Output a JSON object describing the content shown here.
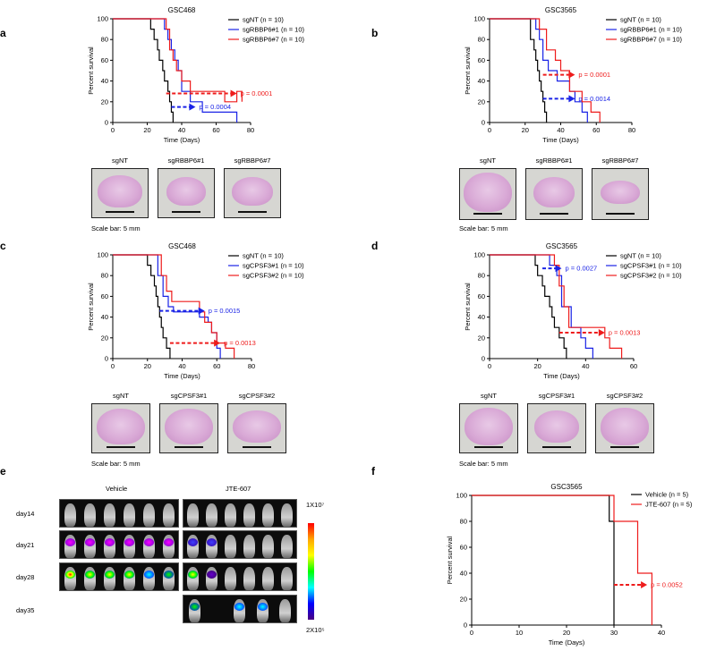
{
  "colors": {
    "black": "#000000",
    "blue": "#1a23e6",
    "red": "#ee1c1c"
  },
  "panels": {
    "a": {
      "label": "a",
      "scale_text": "Scale bar: 5 mm",
      "brains": [
        "sgNT",
        "sgRBBP6#1",
        "sgRBBP6#7"
      ]
    },
    "b": {
      "label": "b",
      "scale_text": "Scale bar: 5 mm",
      "brains": [
        "sgNT",
        "sgRBBP6#1",
        "sgRBBP6#7"
      ]
    },
    "c": {
      "label": "c",
      "scale_text": "Scale bar: 5 mm",
      "brains": [
        "sgNT",
        "sgCPSF3#1",
        "sgCPSF3#2"
      ]
    },
    "d": {
      "label": "d",
      "scale_text": "Scale bar: 5 mm",
      "brains": [
        "sgNT",
        "sgCPSF3#1",
        "sgCPSF3#2"
      ]
    },
    "e": {
      "label": "e",
      "groups": [
        "Vehicle",
        "JTE-607"
      ],
      "days": [
        "day14",
        "day21",
        "day28",
        "day35"
      ],
      "colorbar_max": "1X10⁷",
      "colorbar_min": "2X10⁵"
    },
    "f": {
      "label": "f"
    }
  },
  "chart_data": [
    {
      "id": "a",
      "type": "line",
      "title": "GSC468",
      "xlabel": "Time (Days)",
      "ylabel": "Percent survival",
      "xlim": [
        0,
        80
      ],
      "ylim": [
        0,
        100
      ],
      "xticks": [
        0,
        20,
        40,
        60,
        80
      ],
      "yticks": [
        0,
        20,
        40,
        60,
        80,
        100
      ],
      "series": [
        {
          "name": "sgNT (n = 10)",
          "color": "#000000",
          "x": [
            0,
            22,
            24,
            26,
            27,
            29,
            30,
            32,
            33,
            34,
            35
          ],
          "y": [
            100,
            90,
            80,
            70,
            60,
            50,
            40,
            30,
            20,
            10,
            0
          ]
        },
        {
          "name": "sgRBBP6#1 (n = 10)",
          "color": "#1a23e6",
          "x": [
            0,
            30,
            32,
            34,
            36,
            38,
            40,
            45,
            52,
            72
          ],
          "y": [
            100,
            90,
            80,
            70,
            60,
            50,
            30,
            20,
            10,
            0
          ]
        },
        {
          "name": "sgRBBP6#7 (n = 10)",
          "color": "#ee1c1c",
          "x": [
            0,
            31,
            33,
            35,
            37,
            40,
            45,
            65,
            72,
            75
          ],
          "y": [
            100,
            90,
            70,
            60,
            50,
            40,
            30,
            20,
            30,
            20
          ]
        }
      ],
      "annotations": [
        {
          "text": "p = 0.0001",
          "color": "#ee1c1c",
          "arrow_from": 31,
          "arrow_to": 72,
          "y": 28
        },
        {
          "text": "p = 0.0004",
          "color": "#1a23e6",
          "arrow_from": 34,
          "arrow_to": 48,
          "y": 15
        }
      ]
    },
    {
      "id": "b",
      "type": "line",
      "title": "GSC3565",
      "xlabel": "Time (Days)",
      "ylabel": "Percent survival",
      "xlim": [
        0,
        80
      ],
      "ylim": [
        0,
        100
      ],
      "xticks": [
        0,
        20,
        40,
        60,
        80
      ],
      "yticks": [
        0,
        20,
        40,
        60,
        80,
        100
      ],
      "series": [
        {
          "name": "sgNT (n = 10)",
          "color": "#000000",
          "x": [
            0,
            23,
            25,
            26,
            27,
            28,
            29,
            30,
            31,
            32
          ],
          "y": [
            100,
            80,
            70,
            60,
            50,
            40,
            30,
            20,
            10,
            0
          ]
        },
        {
          "name": "sgRBBP6#1 (n = 10)",
          "color": "#1a23e6",
          "x": [
            0,
            26,
            28,
            30,
            33,
            38,
            45,
            48,
            52,
            55
          ],
          "y": [
            100,
            90,
            80,
            60,
            50,
            40,
            30,
            20,
            10,
            0
          ]
        },
        {
          "name": "sgRBBP6#7 (n = 10)",
          "color": "#ee1c1c",
          "x": [
            0,
            28,
            32,
            37,
            40,
            45,
            52,
            57,
            62
          ],
          "y": [
            100,
            90,
            70,
            60,
            50,
            30,
            20,
            10,
            0
          ]
        }
      ],
      "annotations": [
        {
          "text": "p = 0.0001",
          "color": "#ee1c1c",
          "arrow_from": 30,
          "arrow_to": 48,
          "y": 46
        },
        {
          "text": "p = 0.0014",
          "color": "#1a23e6",
          "arrow_from": 30,
          "arrow_to": 48,
          "y": 23
        }
      ]
    },
    {
      "id": "c",
      "type": "line",
      "title": "GSC468",
      "xlabel": "Time (Days)",
      "ylabel": "Percent survival",
      "xlim": [
        0,
        80
      ],
      "ylim": [
        0,
        100
      ],
      "xticks": [
        0,
        20,
        40,
        60,
        80
      ],
      "yticks": [
        0,
        20,
        40,
        60,
        80,
        100
      ],
      "series": [
        {
          "name": "sgNT (n = 10)",
          "color": "#000000",
          "x": [
            0,
            20,
            22,
            24,
            25,
            26,
            27,
            28,
            29,
            31,
            33
          ],
          "y": [
            100,
            90,
            80,
            70,
            60,
            50,
            40,
            30,
            20,
            10,
            0
          ]
        },
        {
          "name": "sgCPSF3#1 (n = 10)",
          "color": "#1a23e6",
          "x": [
            0,
            26,
            29,
            32,
            35,
            45,
            50,
            55,
            57,
            60,
            62
          ],
          "y": [
            100,
            80,
            60,
            50,
            45,
            45,
            40,
            35,
            25,
            10,
            0
          ]
        },
        {
          "name": "sgCPSF3#2 (n = 10)",
          "color": "#ee1c1c",
          "x": [
            0,
            28,
            31,
            34,
            38,
            50,
            53,
            57,
            60,
            65,
            70
          ],
          "y": [
            100,
            80,
            65,
            55,
            55,
            45,
            35,
            25,
            15,
            10,
            0
          ]
        }
      ],
      "annotations": [
        {
          "text": "p = 0.0015",
          "color": "#1a23e6",
          "arrow_from": 27,
          "arrow_to": 53,
          "y": 46
        },
        {
          "text": "p = 0.0013",
          "color": "#ee1c1c",
          "arrow_from": 33,
          "arrow_to": 62,
          "y": 15
        }
      ]
    },
    {
      "id": "d",
      "type": "line",
      "title": "GSC3565",
      "xlabel": "Time (Days)",
      "ylabel": "Percent survival",
      "xlim": [
        0,
        60
      ],
      "ylim": [
        0,
        100
      ],
      "xticks": [
        0,
        20,
        40,
        60
      ],
      "yticks": [
        0,
        20,
        40,
        60,
        80,
        100
      ],
      "series": [
        {
          "name": "sgNT (n = 10)",
          "color": "#000000",
          "x": [
            0,
            19,
            20,
            22,
            23,
            25,
            26,
            27,
            29,
            31,
            32
          ],
          "y": [
            100,
            90,
            80,
            70,
            60,
            50,
            40,
            30,
            20,
            10,
            0
          ]
        },
        {
          "name": "sgCPSF3#1 (n = 10)",
          "color": "#1a23e6",
          "x": [
            0,
            25,
            28,
            30,
            34,
            38,
            40,
            43
          ],
          "y": [
            100,
            90,
            80,
            50,
            30,
            20,
            10,
            0
          ]
        },
        {
          "name": "sgCPSF3#2 (n = 10)",
          "color": "#ee1c1c",
          "x": [
            0,
            27,
            29,
            31,
            33,
            45,
            48,
            50,
            52,
            55
          ],
          "y": [
            100,
            90,
            70,
            50,
            30,
            30,
            20,
            10,
            10,
            0
          ]
        }
      ],
      "annotations": [
        {
          "text": "p = 0.0027",
          "color": "#1a23e6",
          "arrow_from": 22,
          "arrow_to": 30,
          "y": 87
        },
        {
          "text": "p = 0.0013",
          "color": "#ee1c1c",
          "arrow_from": 29,
          "arrow_to": 48,
          "y": 25
        }
      ]
    },
    {
      "id": "f",
      "type": "line",
      "title": "GSC3565",
      "xlabel": "Time (Days)",
      "ylabel": "Percent survival",
      "xlim": [
        0,
        40
      ],
      "ylim": [
        0,
        100
      ],
      "xticks": [
        0,
        10,
        20,
        30,
        40
      ],
      "yticks": [
        0,
        20,
        40,
        60,
        80,
        100
      ],
      "series": [
        {
          "name": "Vehicle (n = 5)",
          "color": "#000000",
          "x": [
            0,
            29,
            30
          ],
          "y": [
            100,
            80,
            0
          ]
        },
        {
          "name": "JTE-607 (n = 5)",
          "color": "#ee1c1c",
          "x": [
            0,
            30,
            32,
            35,
            37,
            38
          ],
          "y": [
            100,
            80,
            80,
            40,
            40,
            0
          ]
        }
      ],
      "annotations": [
        {
          "text": "p = 0.0052",
          "color": "#ee1c1c",
          "arrow_from": 30,
          "arrow_to": 37,
          "y": 31
        }
      ]
    }
  ]
}
